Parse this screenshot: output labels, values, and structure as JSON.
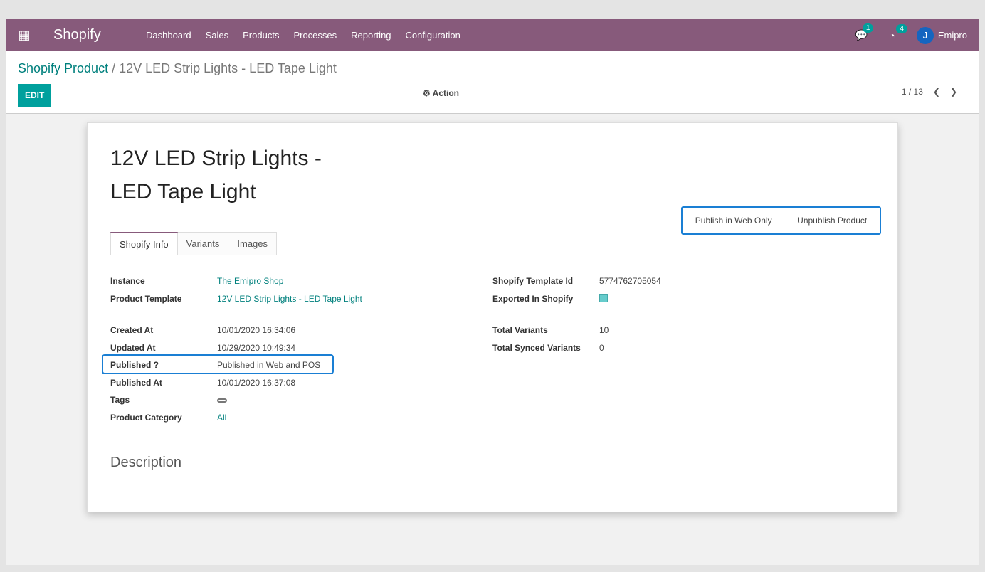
{
  "nav": {
    "app": "Shopify",
    "menus": [
      "Dashboard",
      "Sales",
      "Products",
      "Processes",
      "Reporting",
      "Configuration"
    ],
    "messages_count": "1",
    "activities_count": "4",
    "user": "Emipro",
    "accent": "#875a7b"
  },
  "control": {
    "breadcrumb_parent": "Shopify Product",
    "breadcrumb_current": "12V LED Strip Lights - LED Tape Light",
    "edit": "EDIT",
    "action": "Action",
    "pager": "1 / 13"
  },
  "form": {
    "title": "12V LED Strip Lights - LED Tape Light",
    "buttons": [
      "Publish in Web Only",
      "Unpublish Product"
    ],
    "tabs": [
      "Shopify Info",
      "Variants",
      "Images"
    ],
    "left": [
      {
        "label": "Instance",
        "value": "The Emipro Shop"
      },
      {
        "label": "Product Template",
        "value": "12V LED Strip Lights - LED Tape Light"
      },
      {
        "label": "Created At",
        "value": "10/01/2020 16:34:06"
      },
      {
        "label": "Updated At",
        "value": "10/29/2020 10:49:34"
      },
      {
        "label": "Published ?",
        "value": "Published in Web and POS"
      },
      {
        "label": "Published At",
        "value": "10/01/2020 16:37:08"
      },
      {
        "label": "Tags",
        "value": ""
      },
      {
        "label": "Product Category",
        "value": "All"
      }
    ],
    "right": [
      {
        "label": "Shopify Template Id",
        "value": "5774762705054"
      },
      {
        "label": "Exported In Shopify",
        "checked": true
      },
      {
        "label": "Total Variants",
        "value": "10"
      },
      {
        "label": "Total Synced Variants",
        "value": "0"
      }
    ],
    "description_heading": "Description"
  }
}
